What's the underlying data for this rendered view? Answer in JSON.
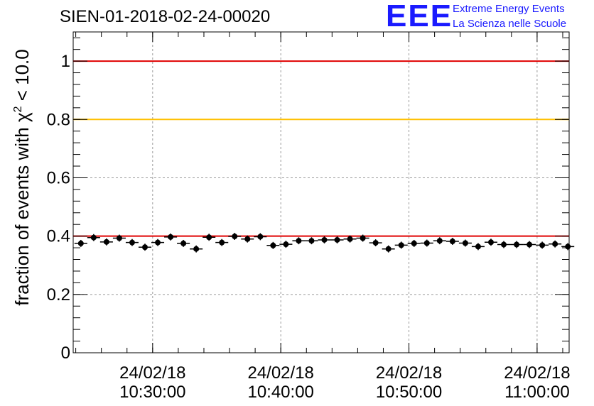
{
  "title": "SIEN-01-2018-02-24-00020",
  "logo": {
    "mark": "EEE",
    "line1": "Extreme Energy Events",
    "line2": "La Scienza nelle Scuole",
    "color": "#1a1aff"
  },
  "chart_data": {
    "type": "scatter",
    "title": "SIEN-01-2018-02-24-00020",
    "xlabel": "",
    "ylabel": "fraction of events with χ² < 10.0",
    "ylim": [
      0,
      1.1
    ],
    "xlim_minutes": [
      23.8,
      62.5
    ],
    "y_ticks": [
      0,
      0.2,
      0.4,
      0.6,
      0.8,
      1
    ],
    "y_tick_labels": [
      "0",
      "0.2",
      "0.4",
      "0.6",
      "0.8",
      "1"
    ],
    "x_ticks": [
      {
        "minutes": 30,
        "date": "24/02/18",
        "time": "10:30:00"
      },
      {
        "minutes": 40,
        "date": "24/02/18",
        "time": "10:40:00"
      },
      {
        "minutes": 50,
        "date": "24/02/18",
        "time": "10:50:00"
      },
      {
        "minutes": 60,
        "date": "24/02/18",
        "time": "11:00:00"
      }
    ],
    "x_origin": "24/02/18 10:00:00",
    "reference_lines": [
      {
        "y": 1.0,
        "color": "#e00000"
      },
      {
        "y": 0.8,
        "color": "#ffc000"
      },
      {
        "y": 0.4,
        "color": "#e00000"
      }
    ],
    "grid": true,
    "bin_width_minutes": 1,
    "series": [
      {
        "name": "fraction",
        "color": "#000000",
        "x": [
          24.4,
          25.4,
          26.4,
          27.4,
          28.4,
          29.4,
          30.4,
          31.4,
          32.4,
          33.4,
          34.4,
          35.4,
          36.4,
          37.4,
          38.4,
          39.4,
          40.4,
          41.4,
          42.4,
          43.4,
          44.4,
          45.4,
          46.4,
          47.4,
          48.4,
          49.4,
          50.4,
          51.4,
          52.4,
          53.4,
          54.4,
          55.4,
          56.4,
          57.4,
          58.4,
          59.4,
          60.4,
          61.4,
          62.4
        ],
        "values": [
          0.375,
          0.395,
          0.38,
          0.393,
          0.378,
          0.362,
          0.378,
          0.397,
          0.375,
          0.356,
          0.396,
          0.378,
          0.399,
          0.39,
          0.398,
          0.368,
          0.372,
          0.384,
          0.384,
          0.387,
          0.387,
          0.39,
          0.393,
          0.377,
          0.356,
          0.369,
          0.375,
          0.376,
          0.384,
          0.382,
          0.376,
          0.364,
          0.379,
          0.371,
          0.371,
          0.371,
          0.369,
          0.373,
          0.364
        ],
        "errors": [
          0.012,
          0.012,
          0.012,
          0.012,
          0.012,
          0.012,
          0.012,
          0.012,
          0.012,
          0.012,
          0.012,
          0.012,
          0.012,
          0.012,
          0.012,
          0.012,
          0.012,
          0.012,
          0.012,
          0.012,
          0.012,
          0.012,
          0.012,
          0.012,
          0.012,
          0.012,
          0.012,
          0.012,
          0.012,
          0.012,
          0.012,
          0.012,
          0.012,
          0.012,
          0.012,
          0.012,
          0.012,
          0.012,
          0.012
        ]
      }
    ]
  }
}
